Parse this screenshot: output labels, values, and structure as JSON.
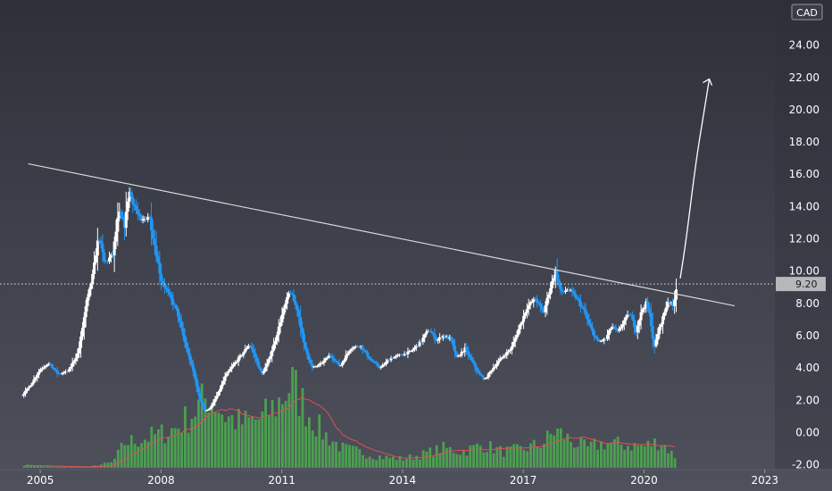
{
  "chart_data": {
    "type": "candlestick",
    "currency": "CAD",
    "y_ticks": [
      "24.00",
      "22.00",
      "20.00",
      "18.00",
      "16.00",
      "14.00",
      "12.00",
      "10.00",
      "8.00",
      "6.00",
      "4.00",
      "2.00",
      "0.00",
      "-2.00"
    ],
    "x_ticks": [
      {
        "label": "2005",
        "year": 2005.0
      },
      {
        "label": "2008",
        "year": 2008.0
      },
      {
        "label": "2011",
        "year": 2011.0
      },
      {
        "label": "2014",
        "year": 2014.0
      },
      {
        "label": "2017",
        "year": 2017.0
      },
      {
        "label": "2020",
        "year": 2020.0
      },
      {
        "label": "2023",
        "year": 2023.0
      }
    ],
    "ylim": [
      -2.3,
      26.8
    ],
    "xlim": [
      2004.0,
      2023.25
    ],
    "current_price": 9.2,
    "current_price_label": "9.20",
    "price_path": [
      [
        2004.55,
        2.3
      ],
      [
        2004.75,
        2.9
      ],
      [
        2005.0,
        3.9
      ],
      [
        2005.2,
        4.3
      ],
      [
        2005.45,
        3.6
      ],
      [
        2005.7,
        3.8
      ],
      [
        2005.95,
        5.0
      ],
      [
        2006.15,
        8.0
      ],
      [
        2006.3,
        9.7
      ],
      [
        2006.45,
        12.2
      ],
      [
        2006.6,
        10.5
      ],
      [
        2006.8,
        11.0
      ],
      [
        2006.95,
        13.6
      ],
      [
        2007.1,
        12.8
      ],
      [
        2007.2,
        15.0
      ],
      [
        2007.35,
        14.0
      ],
      [
        2007.5,
        13.0
      ],
      [
        2007.7,
        13.5
      ],
      [
        2007.85,
        11.5
      ],
      [
        2008.0,
        9.5
      ],
      [
        2008.2,
        8.5
      ],
      [
        2008.4,
        7.5
      ],
      [
        2008.6,
        5.5
      ],
      [
        2008.8,
        3.8
      ],
      [
        2008.95,
        2.2
      ],
      [
        2009.1,
        1.3
      ],
      [
        2009.25,
        1.6
      ],
      [
        2009.45,
        2.6
      ],
      [
        2009.6,
        3.5
      ],
      [
        2009.8,
        4.2
      ],
      [
        2010.0,
        4.8
      ],
      [
        2010.2,
        5.5
      ],
      [
        2010.35,
        4.6
      ],
      [
        2010.5,
        3.6
      ],
      [
        2010.65,
        4.3
      ],
      [
        2010.85,
        5.8
      ],
      [
        2011.0,
        7.2
      ],
      [
        2011.2,
        8.8
      ],
      [
        2011.4,
        7.5
      ],
      [
        2011.55,
        5.5
      ],
      [
        2011.75,
        4.0
      ],
      [
        2011.95,
        4.2
      ],
      [
        2012.2,
        4.8
      ],
      [
        2012.45,
        4.1
      ],
      [
        2012.7,
        5.2
      ],
      [
        2012.95,
        5.4
      ],
      [
        2013.2,
        4.5
      ],
      [
        2013.45,
        4.0
      ],
      [
        2013.7,
        4.6
      ],
      [
        2013.95,
        4.8
      ],
      [
        2014.2,
        5.0
      ],
      [
        2014.45,
        5.6
      ],
      [
        2014.65,
        6.4
      ],
      [
        2014.85,
        5.7
      ],
      [
        2015.0,
        6.0
      ],
      [
        2015.2,
        5.8
      ],
      [
        2015.35,
        4.6
      ],
      [
        2015.55,
        5.2
      ],
      [
        2015.75,
        4.3
      ],
      [
        2015.9,
        3.6
      ],
      [
        2016.05,
        3.3
      ],
      [
        2016.25,
        4.0
      ],
      [
        2016.45,
        4.6
      ],
      [
        2016.7,
        5.2
      ],
      [
        2016.9,
        6.5
      ],
      [
        2017.1,
        7.8
      ],
      [
        2017.3,
        8.3
      ],
      [
        2017.5,
        7.4
      ],
      [
        2017.65,
        8.8
      ],
      [
        2017.8,
        10.0
      ],
      [
        2017.95,
        8.6
      ],
      [
        2018.1,
        8.9
      ],
      [
        2018.3,
        8.4
      ],
      [
        2018.5,
        7.6
      ],
      [
        2018.65,
        6.6
      ],
      [
        2018.85,
        5.6
      ],
      [
        2019.05,
        5.8
      ],
      [
        2019.2,
        6.6
      ],
      [
        2019.35,
        6.2
      ],
      [
        2019.5,
        6.9
      ],
      [
        2019.65,
        7.4
      ],
      [
        2019.8,
        6.3
      ],
      [
        2019.95,
        7.6
      ],
      [
        2020.05,
        8.0
      ],
      [
        2020.15,
        7.2
      ],
      [
        2020.25,
        5.2
      ],
      [
        2020.35,
        6.2
      ],
      [
        2020.5,
        7.4
      ],
      [
        2020.6,
        8.2
      ],
      [
        2020.72,
        7.8
      ],
      [
        2020.82,
        9.2
      ]
    ],
    "volume_path": [
      [
        2004.6,
        0.03
      ],
      [
        2005.4,
        0.01
      ],
      [
        2006.2,
        0.01
      ],
      [
        2006.8,
        0.06
      ],
      [
        2007.1,
        0.28
      ],
      [
        2007.5,
        0.32
      ],
      [
        2008.0,
        0.38
      ],
      [
        2008.4,
        0.45
      ],
      [
        2008.8,
        0.62
      ],
      [
        2009.2,
        0.82
      ],
      [
        2009.6,
        0.58
      ],
      [
        2010.0,
        0.5
      ],
      [
        2010.5,
        0.55
      ],
      [
        2010.9,
        0.72
      ],
      [
        2011.25,
        0.95
      ],
      [
        2011.6,
        0.66
      ],
      [
        2012.0,
        0.4
      ],
      [
        2012.5,
        0.22
      ],
      [
        2013.0,
        0.17
      ],
      [
        2013.5,
        0.12
      ],
      [
        2014.0,
        0.1
      ],
      [
        2014.5,
        0.15
      ],
      [
        2015.0,
        0.22
      ],
      [
        2015.5,
        0.18
      ],
      [
        2016.0,
        0.26
      ],
      [
        2016.5,
        0.18
      ],
      [
        2017.0,
        0.21
      ],
      [
        2017.5,
        0.28
      ],
      [
        2017.8,
        0.42
      ],
      [
        2018.2,
        0.3
      ],
      [
        2018.6,
        0.22
      ],
      [
        2019.0,
        0.28
      ],
      [
        2019.5,
        0.26
      ],
      [
        2020.0,
        0.24
      ],
      [
        2020.4,
        0.3
      ],
      [
        2020.82,
        0.1
      ]
    ],
    "volume_scale_max": 1.0,
    "trendline": {
      "start": [
        2004.7,
        16.65
      ],
      "end": [
        2022.25,
        7.85
      ]
    },
    "projection_arrow": [
      [
        2020.9,
        9.55
      ],
      [
        2021.05,
        12.0
      ],
      [
        2021.3,
        17.0
      ],
      [
        2021.5,
        20.0
      ],
      [
        2021.62,
        21.9
      ]
    ],
    "colors": {
      "up": "#ffffff",
      "down": "#2196f3",
      "volume": "#4caf50",
      "volume_ma": "#e05050",
      "trendline": "#d7d7d7",
      "arrow": "#ffffff",
      "price_line": "#e8e8e8"
    }
  }
}
